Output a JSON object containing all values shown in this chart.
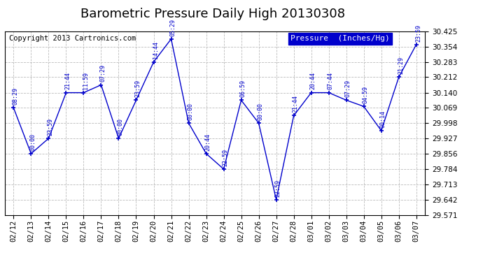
{
  "title": "Barometric Pressure Daily High 20130308",
  "copyright": "Copyright 2013 Cartronics.com",
  "legend_label": "Pressure  (Inches/Hg)",
  "dates": [
    "02/12",
    "02/13",
    "02/14",
    "02/15",
    "02/16",
    "02/17",
    "02/18",
    "02/19",
    "02/20",
    "02/21",
    "02/22",
    "02/23",
    "02/24",
    "02/25",
    "02/26",
    "02/27",
    "02/28",
    "03/01",
    "03/02",
    "03/03",
    "03/04",
    "03/05",
    "03/06",
    "03/07"
  ],
  "values": [
    30.069,
    29.856,
    29.927,
    30.14,
    30.14,
    30.176,
    29.927,
    30.105,
    30.283,
    30.39,
    29.998,
    29.856,
    29.784,
    30.105,
    29.998,
    29.642,
    30.033,
    30.14,
    30.14,
    30.105,
    30.076,
    29.963,
    30.212,
    30.364
  ],
  "time_labels": [
    "08:29",
    "00:00",
    "23:59",
    "21:44",
    "11:59",
    "07:29",
    "00:00",
    "23:59",
    "14:44",
    "05:29",
    "00:00",
    "20:44",
    "22:59",
    "06:59",
    "00:00",
    "22:59",
    "21:44",
    "20:44",
    "07:44",
    "07:29",
    "04:59",
    "00:14",
    "21:29",
    "23:59"
  ],
  "ylim_min": 29.571,
  "ylim_max": 30.425,
  "yticks": [
    29.571,
    29.642,
    29.713,
    29.784,
    29.856,
    29.927,
    29.998,
    30.069,
    30.14,
    30.212,
    30.283,
    30.354,
    30.425
  ],
  "line_color": "#0000CC",
  "marker_color": "#0000CC",
  "bg_color": "#ffffff",
  "grid_color": "#bbbbbb",
  "title_fontsize": 13,
  "tick_fontsize": 7.5,
  "copyright_fontsize": 7.5,
  "legend_fontsize": 8
}
